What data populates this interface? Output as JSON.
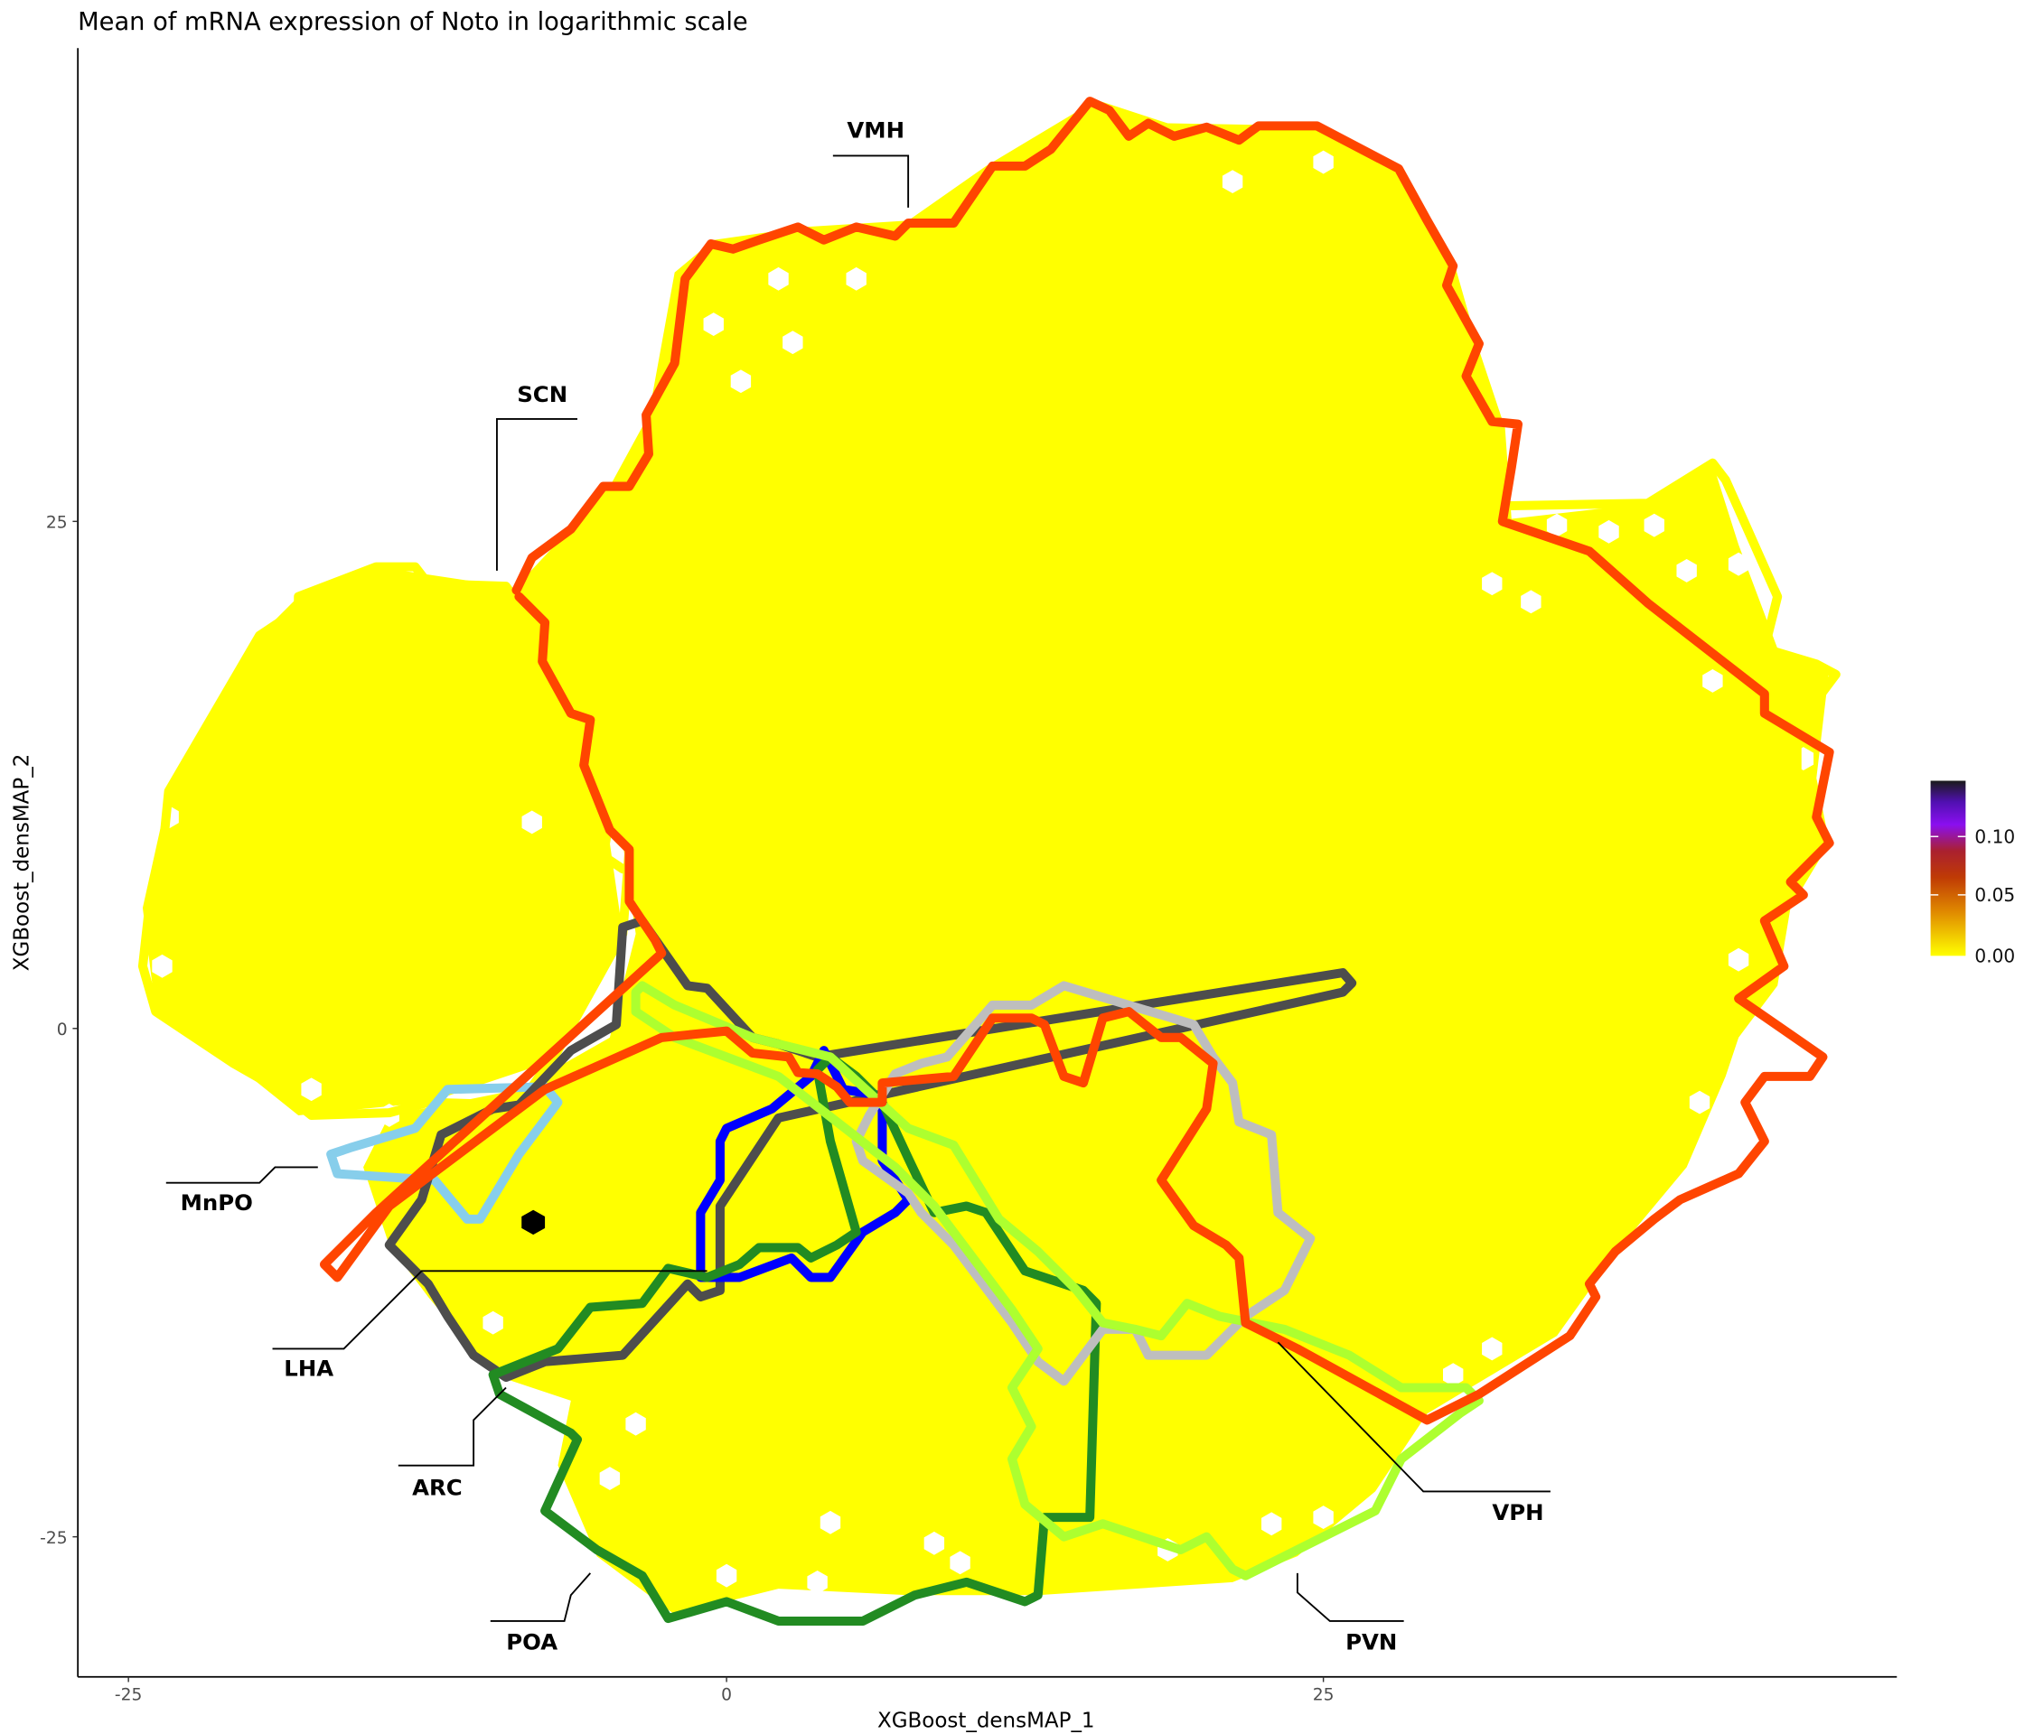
{
  "chart_data": {
    "type": "heatmap",
    "subtype": "hexbin",
    "title": "Mean of mRNA expression of Noto in logarithmic scale",
    "xlabel": "XGBoost_densMAP_1",
    "ylabel": "XGBoost_densMAP_2",
    "x_ticks": [
      "-25",
      "0",
      "25"
    ],
    "y_ticks": [
      "25",
      "0",
      "-25"
    ],
    "xlim": [
      -27,
      49
    ],
    "ylim": [
      -32,
      48
    ],
    "grid": false,
    "colorbar": {
      "ticks": [
        "0.10",
        "0.05",
        "0.00"
      ],
      "range": [
        0,
        0.14
      ],
      "colors": [
        "#ffff00",
        "#e08a00",
        "#b8300a",
        "#8a0ff0",
        "#1a1a1a"
      ],
      "placement": "right"
    },
    "dominant_value": 0.0,
    "high_value_point": {
      "x": -8,
      "y": -9.5,
      "value": 0.14
    },
    "regions": [
      {
        "name": "VMH",
        "color": "#ff4500"
      },
      {
        "name": "SCN",
        "color": "#ffff00"
      },
      {
        "name": "MnPO",
        "color": "#87ceeb"
      },
      {
        "name": "LHA",
        "color": "#4d4d4d"
      },
      {
        "name": "ARC",
        "color": "#0000ff"
      },
      {
        "name": "POA",
        "color": "#228b22"
      },
      {
        "name": "VPH",
        "color": "#bebebe"
      },
      {
        "name": "PVN",
        "color": "#adff2f"
      }
    ]
  }
}
